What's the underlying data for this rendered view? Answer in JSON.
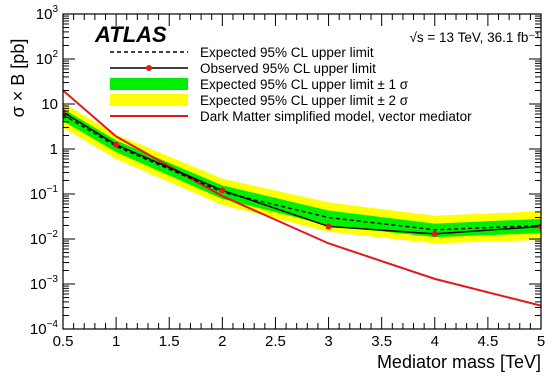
{
  "chart_data": {
    "type": "line",
    "ylabel": "σ × B [pb]",
    "xlabel": "Mediator mass [TeV]",
    "experiment_label": "ATLAS",
    "energy_label": "√s = 13 TeV, 36.1 fb⁻¹",
    "xlim": [
      0.5,
      5.0
    ],
    "ylim": [
      0.0001,
      1000
    ],
    "yscale": "log",
    "x_ticks": [
      0.5,
      1,
      1.5,
      2,
      2.5,
      3,
      3.5,
      4,
      4.5,
      5
    ],
    "x_tick_labels": [
      "0.5",
      "1",
      "1.5",
      "2",
      "2.5",
      "3",
      "3.5",
      "4",
      "4.5",
      "5"
    ],
    "y_tick_labels": [
      {
        "base": "10",
        "exp": "−4",
        "value": 0.0001
      },
      {
        "base": "10",
        "exp": "−3",
        "value": 0.001
      },
      {
        "base": "10",
        "exp": "−2",
        "value": 0.01
      },
      {
        "base": "10",
        "exp": "−1",
        "value": 0.1
      },
      {
        "base": "1",
        "exp": "",
        "value": 1
      },
      {
        "base": "10",
        "exp": "",
        "value": 10
      },
      {
        "base": "10",
        "exp": "2",
        "value": 100
      },
      {
        "base": "10",
        "exp": "3",
        "value": 1000
      }
    ],
    "x": [
      0.5,
      1.0,
      2.0,
      3.0,
      4.0,
      5.0
    ],
    "series": [
      {
        "name": "Expected 95% CL upper limit",
        "style": "dashed",
        "color": "#000000",
        "values": [
          5.8,
          1.15,
          0.11,
          0.03,
          0.016,
          0.02
        ]
      },
      {
        "name": "Observed 95% CL upper limit",
        "style": "solid-markers",
        "color": "#000000",
        "marker_color": "#e8161b",
        "values": [
          6.6,
          1.25,
          0.12,
          0.019,
          0.013,
          0.019
        ]
      },
      {
        "name": "Expected 95% CL upper limit ± 1 σ",
        "style": "band",
        "color": "#00ee00",
        "lower": [
          4.2,
          0.85,
          0.078,
          0.02,
          0.011,
          0.0135
        ],
        "upper": [
          7.8,
          1.55,
          0.155,
          0.043,
          0.022,
          0.028
        ]
      },
      {
        "name": "Expected 95% CL upper limit ± 2 σ",
        "style": "band",
        "color": "#ffff00",
        "lower": [
          3.0,
          0.6,
          0.057,
          0.0145,
          0.008,
          0.0095
        ],
        "upper": [
          10.5,
          2.1,
          0.22,
          0.065,
          0.033,
          0.041
        ]
      },
      {
        "name": "Dark Matter simplified model, vector mediator",
        "style": "solid",
        "color": "#e8161b",
        "x": [
          0.5,
          1.0,
          2.0,
          3.0,
          4.0,
          5.0
        ],
        "values": [
          20,
          1.9,
          0.09,
          0.008,
          0.0013,
          0.00033
        ]
      }
    ],
    "legend_position": "top-right"
  }
}
